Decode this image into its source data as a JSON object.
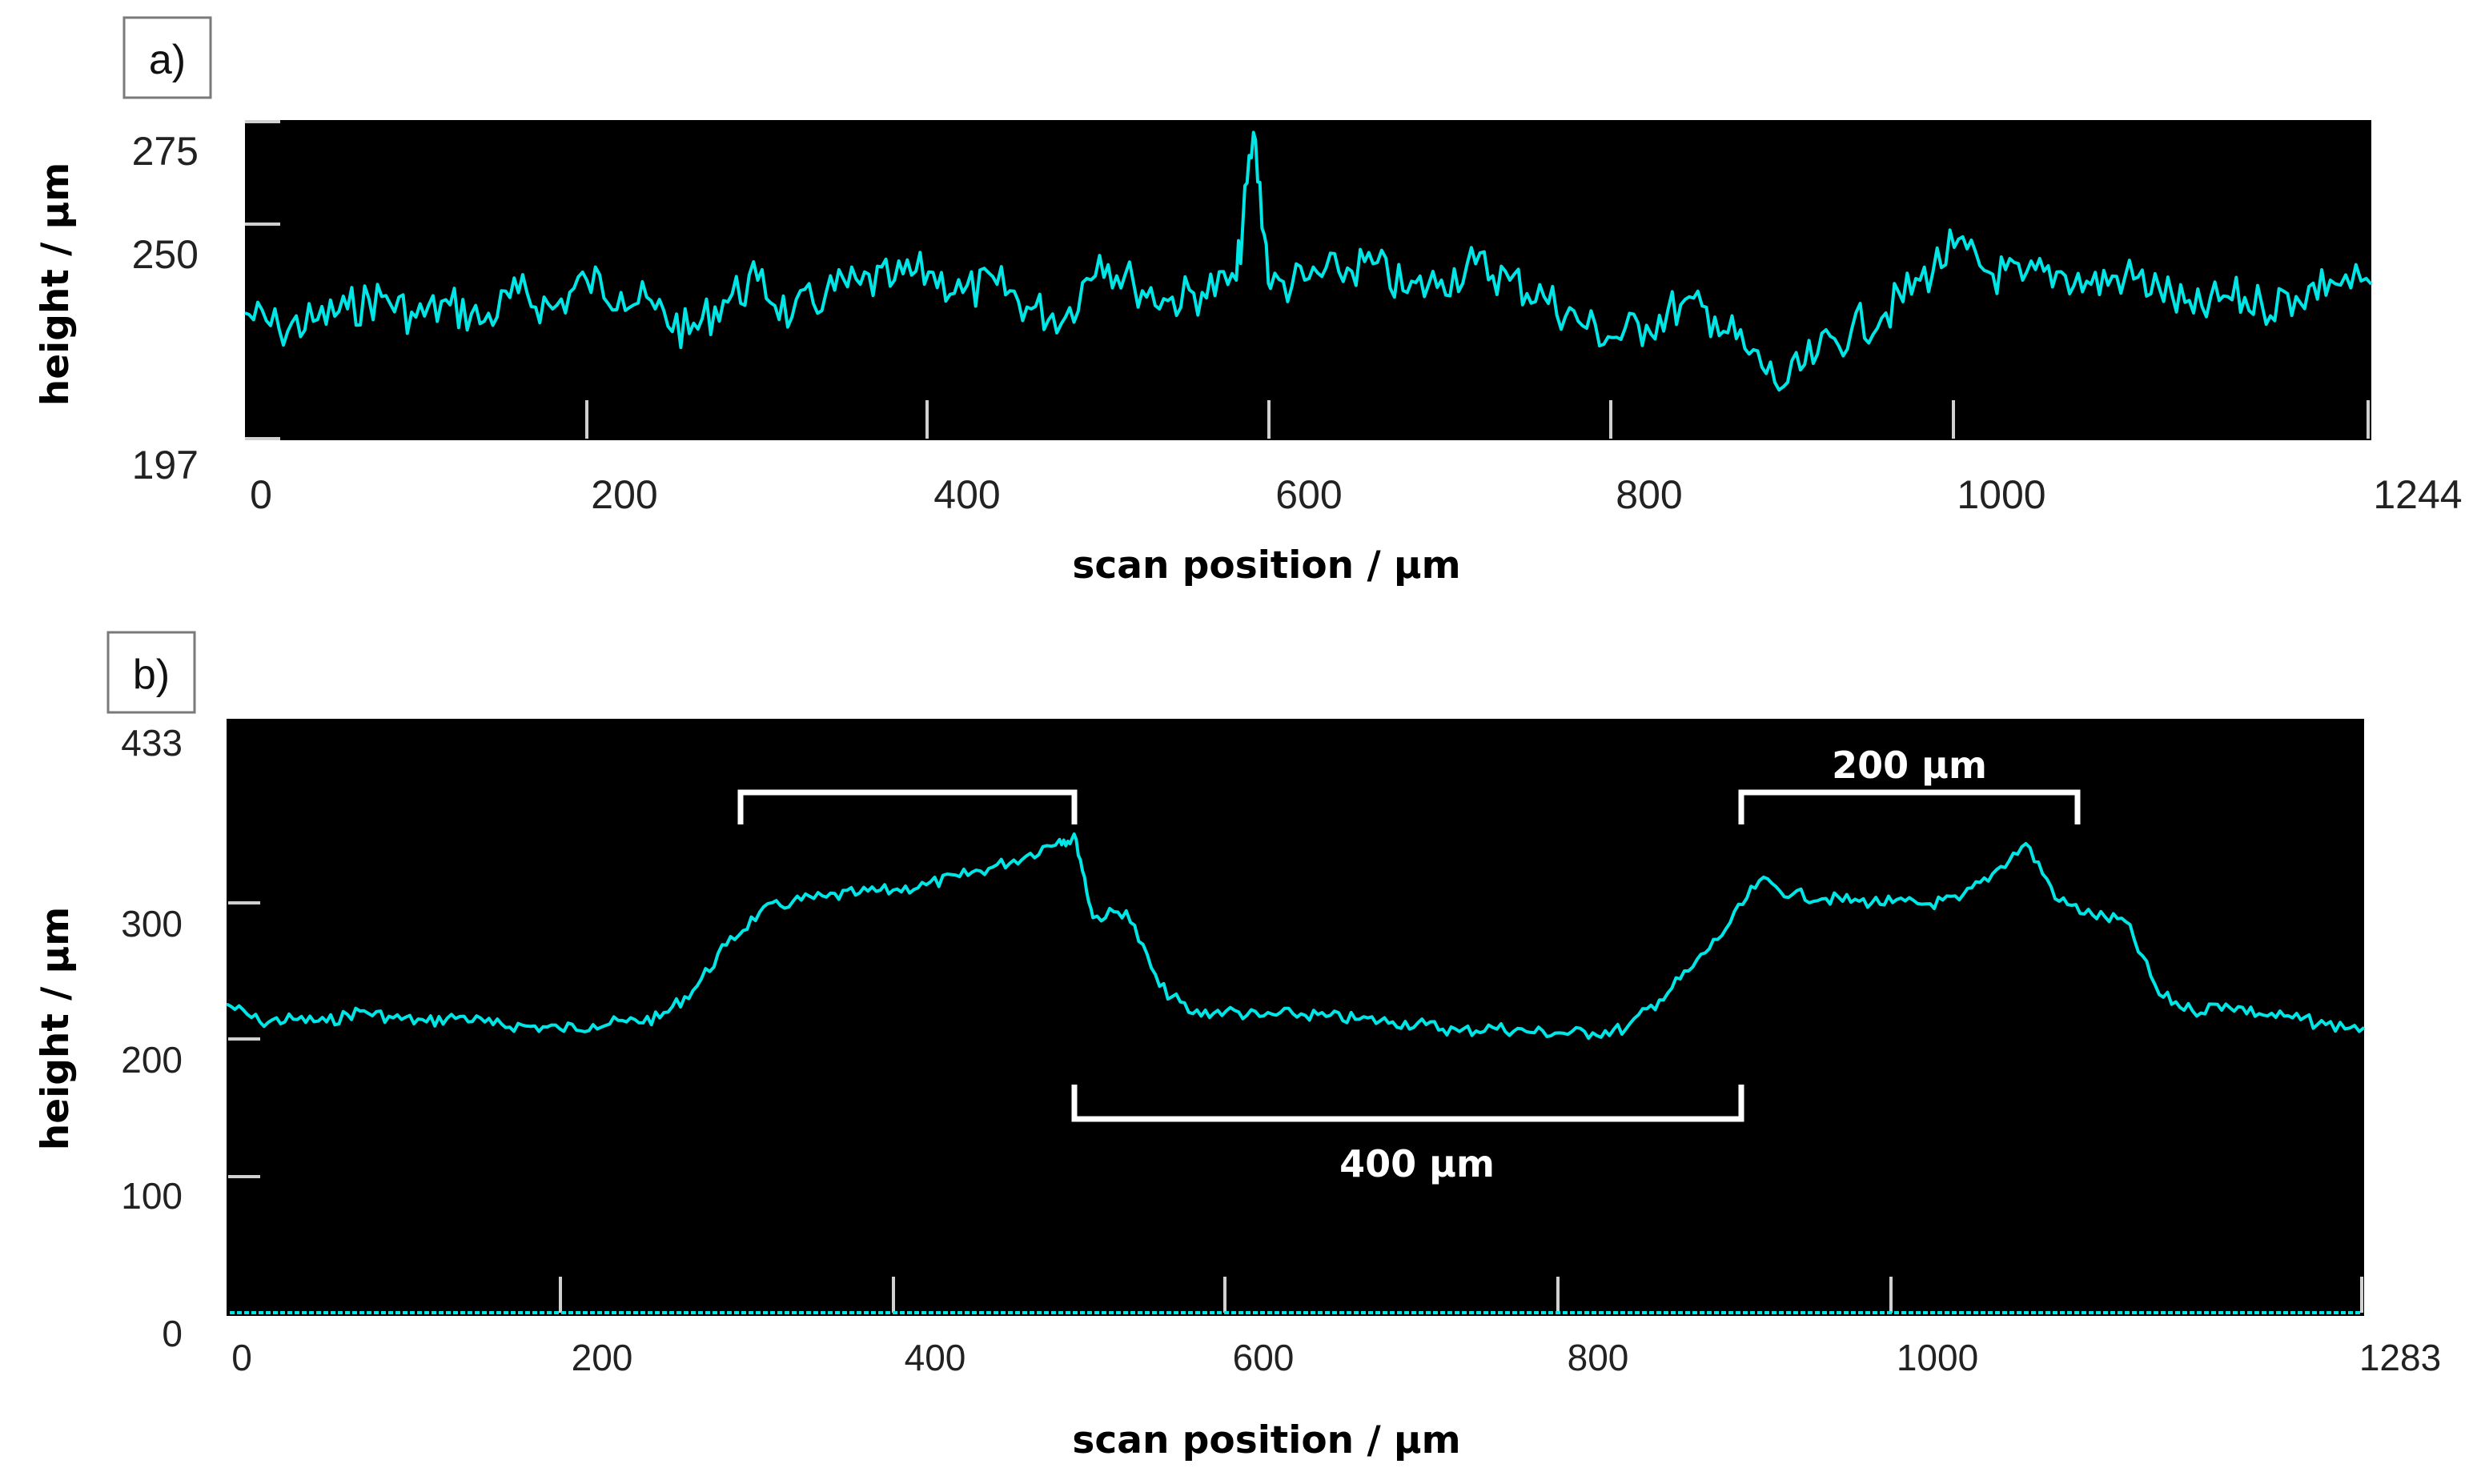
{
  "chart_data": [
    {
      "type": "line",
      "panel_label": "a)",
      "xlabel": "scan position / µm",
      "ylabel": "height / µm",
      "xlim": [
        0,
        1244
      ],
      "ylim": [
        197,
        275
      ],
      "x_ticks": [
        "0",
        "200",
        "400",
        "600",
        "800",
        "1000",
        "1244"
      ],
      "y_ticks": [
        "275",
        "250",
        "197"
      ],
      "background": "#000000",
      "line_color": "#00e5e5",
      "series": [
        {
          "x": [
            0,
            20,
            40,
            60,
            80,
            100,
            120,
            140,
            160,
            180,
            200,
            220,
            240,
            260,
            280,
            300,
            320,
            340,
            360,
            380,
            400,
            420,
            440,
            460,
            480,
            500,
            520,
            540,
            560,
            580,
            590,
            600,
            620,
            640,
            660,
            680,
            700,
            720,
            740,
            760,
            780,
            800,
            820,
            840,
            860,
            880,
            900,
            920,
            940,
            960,
            980,
            1000,
            1020,
            1040,
            1060,
            1080,
            1100,
            1120,
            1140,
            1160,
            1180,
            1200,
            1220,
            1244
          ],
          "values": [
            228,
            224,
            226,
            229,
            232,
            227,
            230,
            226,
            233,
            229,
            236,
            233,
            229,
            223,
            231,
            236,
            227,
            233,
            235,
            236,
            238,
            233,
            235,
            229,
            227,
            242,
            235,
            231,
            233,
            236,
            272,
            234,
            236,
            238,
            240,
            233,
            236,
            240,
            236,
            232,
            226,
            222,
            225,
            230,
            227,
            218,
            210,
            218,
            224,
            228,
            236,
            244,
            238,
            236,
            238,
            235,
            237,
            234,
            228,
            232,
            230,
            232,
            236,
            235
          ]
        }
      ]
    },
    {
      "type": "line",
      "panel_label": "b)",
      "xlabel": "scan position / µm",
      "ylabel": "height / µm",
      "xlim": [
        0,
        1283
      ],
      "ylim": [
        0,
        433
      ],
      "x_ticks": [
        "0",
        "200",
        "400",
        "600",
        "800",
        "1000",
        "1283"
      ],
      "y_ticks": [
        "433",
        "300",
        "200",
        "100",
        "0"
      ],
      "background": "#000000",
      "line_color": "#00e5e5",
      "annotations": [
        "200 µm",
        "400 µm"
      ],
      "series": [
        {
          "x": [
            0,
            20,
            40,
            60,
            80,
            100,
            120,
            140,
            160,
            180,
            200,
            220,
            240,
            260,
            280,
            300,
            320,
            340,
            360,
            380,
            400,
            420,
            440,
            460,
            480,
            500,
            510,
            520,
            540,
            560,
            580,
            600,
            620,
            640,
            660,
            680,
            700,
            720,
            740,
            760,
            780,
            800,
            820,
            840,
            860,
            880,
            900,
            920,
            940,
            960,
            980,
            1000,
            1020,
            1040,
            1060,
            1080,
            1100,
            1120,
            1140,
            1160,
            1180,
            1200,
            1220,
            1240,
            1260,
            1283
          ],
          "values": [
            225,
            212,
            214,
            212,
            220,
            215,
            212,
            216,
            210,
            209,
            207,
            210,
            212,
            215,
            235,
            268,
            292,
            300,
            303,
            306,
            308,
            312,
            318,
            325,
            333,
            345,
            345,
            288,
            293,
            238,
            218,
            220,
            216,
            218,
            216,
            214,
            212,
            210,
            205,
            208,
            205,
            204,
            204,
            207,
            228,
            252,
            280,
            315,
            305,
            302,
            300,
            299,
            298,
            301,
            320,
            342,
            300,
            290,
            285,
            232,
            220,
            225,
            218,
            215,
            210,
            208
          ]
        }
      ]
    }
  ]
}
